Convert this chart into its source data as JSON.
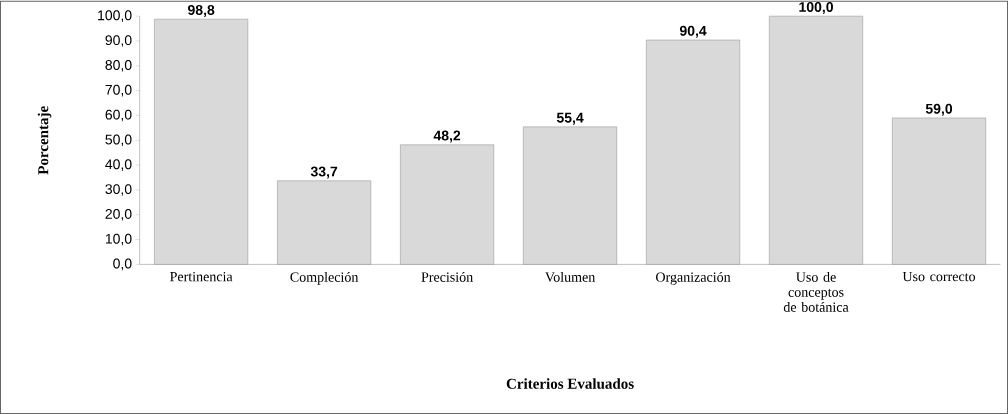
{
  "chart_data": {
    "type": "bar",
    "xlabel": "Criterios Evaluados",
    "ylabel": "Porcentaje",
    "categories": [
      "Pertinencia",
      "Compleción",
      "Precisión",
      "Volumen",
      "Organización",
      "Uso de conceptos de botánica",
      "Uso correcto"
    ],
    "values": [
      98.8,
      33.7,
      48.2,
      55.4,
      90.4,
      100.0,
      59.0
    ],
    "value_labels": [
      "98,8",
      "33,7",
      "48,2",
      "55,4",
      "90,4",
      "100,0",
      "59,0"
    ],
    "color": "#d9d9d9",
    "ylim": [
      0,
      100
    ],
    "yticks": [
      {
        "value": 0,
        "label": "0,0"
      },
      {
        "value": 10,
        "label": "10,0"
      },
      {
        "value": 20,
        "label": "20,0"
      },
      {
        "value": 30,
        "label": "30,0"
      },
      {
        "value": 40,
        "label": "40,0"
      },
      {
        "value": 50,
        "label": "50,0"
      },
      {
        "value": 60,
        "label": "60,0"
      },
      {
        "value": 70,
        "label": "70,0"
      },
      {
        "value": 80,
        "label": "80,0"
      },
      {
        "value": 90,
        "label": "90,0"
      },
      {
        "value": 100,
        "label": "100,0"
      }
    ]
  }
}
